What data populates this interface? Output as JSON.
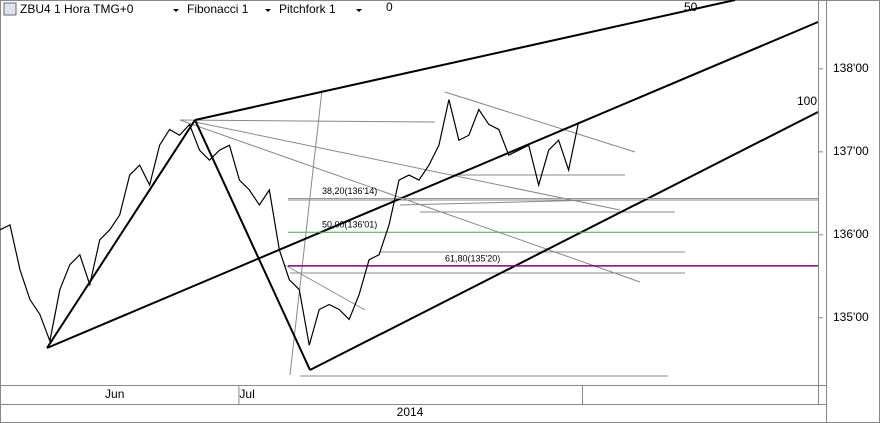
{
  "header": {
    "symbol": "ZBU4 1 Hora TMG+0",
    "tools": [
      "Fibonacci 1",
      "Pitchfork 1"
    ]
  },
  "pitchfork_levels": [
    "0",
    "50",
    "100"
  ],
  "chart_data": {
    "type": "line",
    "color": "#000000",
    "values": [
      136.06,
      136.12,
      135.58,
      135.22,
      135.04,
      134.72,
      135.34,
      135.64,
      135.76,
      135.4,
      135.94,
      136.06,
      136.24,
      136.72,
      136.84,
      136.6,
      137.08,
      137.27,
      137.2,
      137.33,
      137.02,
      136.9,
      137.02,
      137.08,
      136.66,
      136.54,
      136.36,
      136.54,
      135.82,
      135.46,
      135.34,
      134.67,
      135.1,
      135.16,
      135.1,
      134.98,
      135.28,
      135.7,
      135.76,
      136.12,
      136.66,
      136.72,
      136.66,
      136.84,
      137.08,
      137.63,
      137.14,
      137.2,
      137.51,
      137.33,
      137.27,
      136.96,
      137.02,
      137.08,
      136.6,
      137.02,
      137.14,
      136.78,
      137.36
    ],
    "xlim": [
      0,
      82
    ],
    "xticks": [
      {
        "value": 11.5,
        "label": "Jun"
      },
      {
        "value": 24,
        "label": "Jul"
      }
    ],
    "period_label": "2014",
    "ylim": [
      134.19,
      138.83
    ],
    "yticks": [
      {
        "value": 138,
        "label": "138'00"
      },
      {
        "value": 137,
        "label": "137'00"
      },
      {
        "value": 136,
        "label": "136'00"
      },
      {
        "value": 135,
        "label": "135'00"
      }
    ],
    "fib_levels": [
      {
        "value": 136.4375,
        "label": "38,20(136'14)",
        "color": "#999999"
      },
      {
        "value": 136.03125,
        "label": "50,00(136'01)",
        "color": "#44aa44"
      },
      {
        "value": 135.625,
        "label": "61,80(135'20)",
        "color": "#800080"
      }
    ]
  }
}
